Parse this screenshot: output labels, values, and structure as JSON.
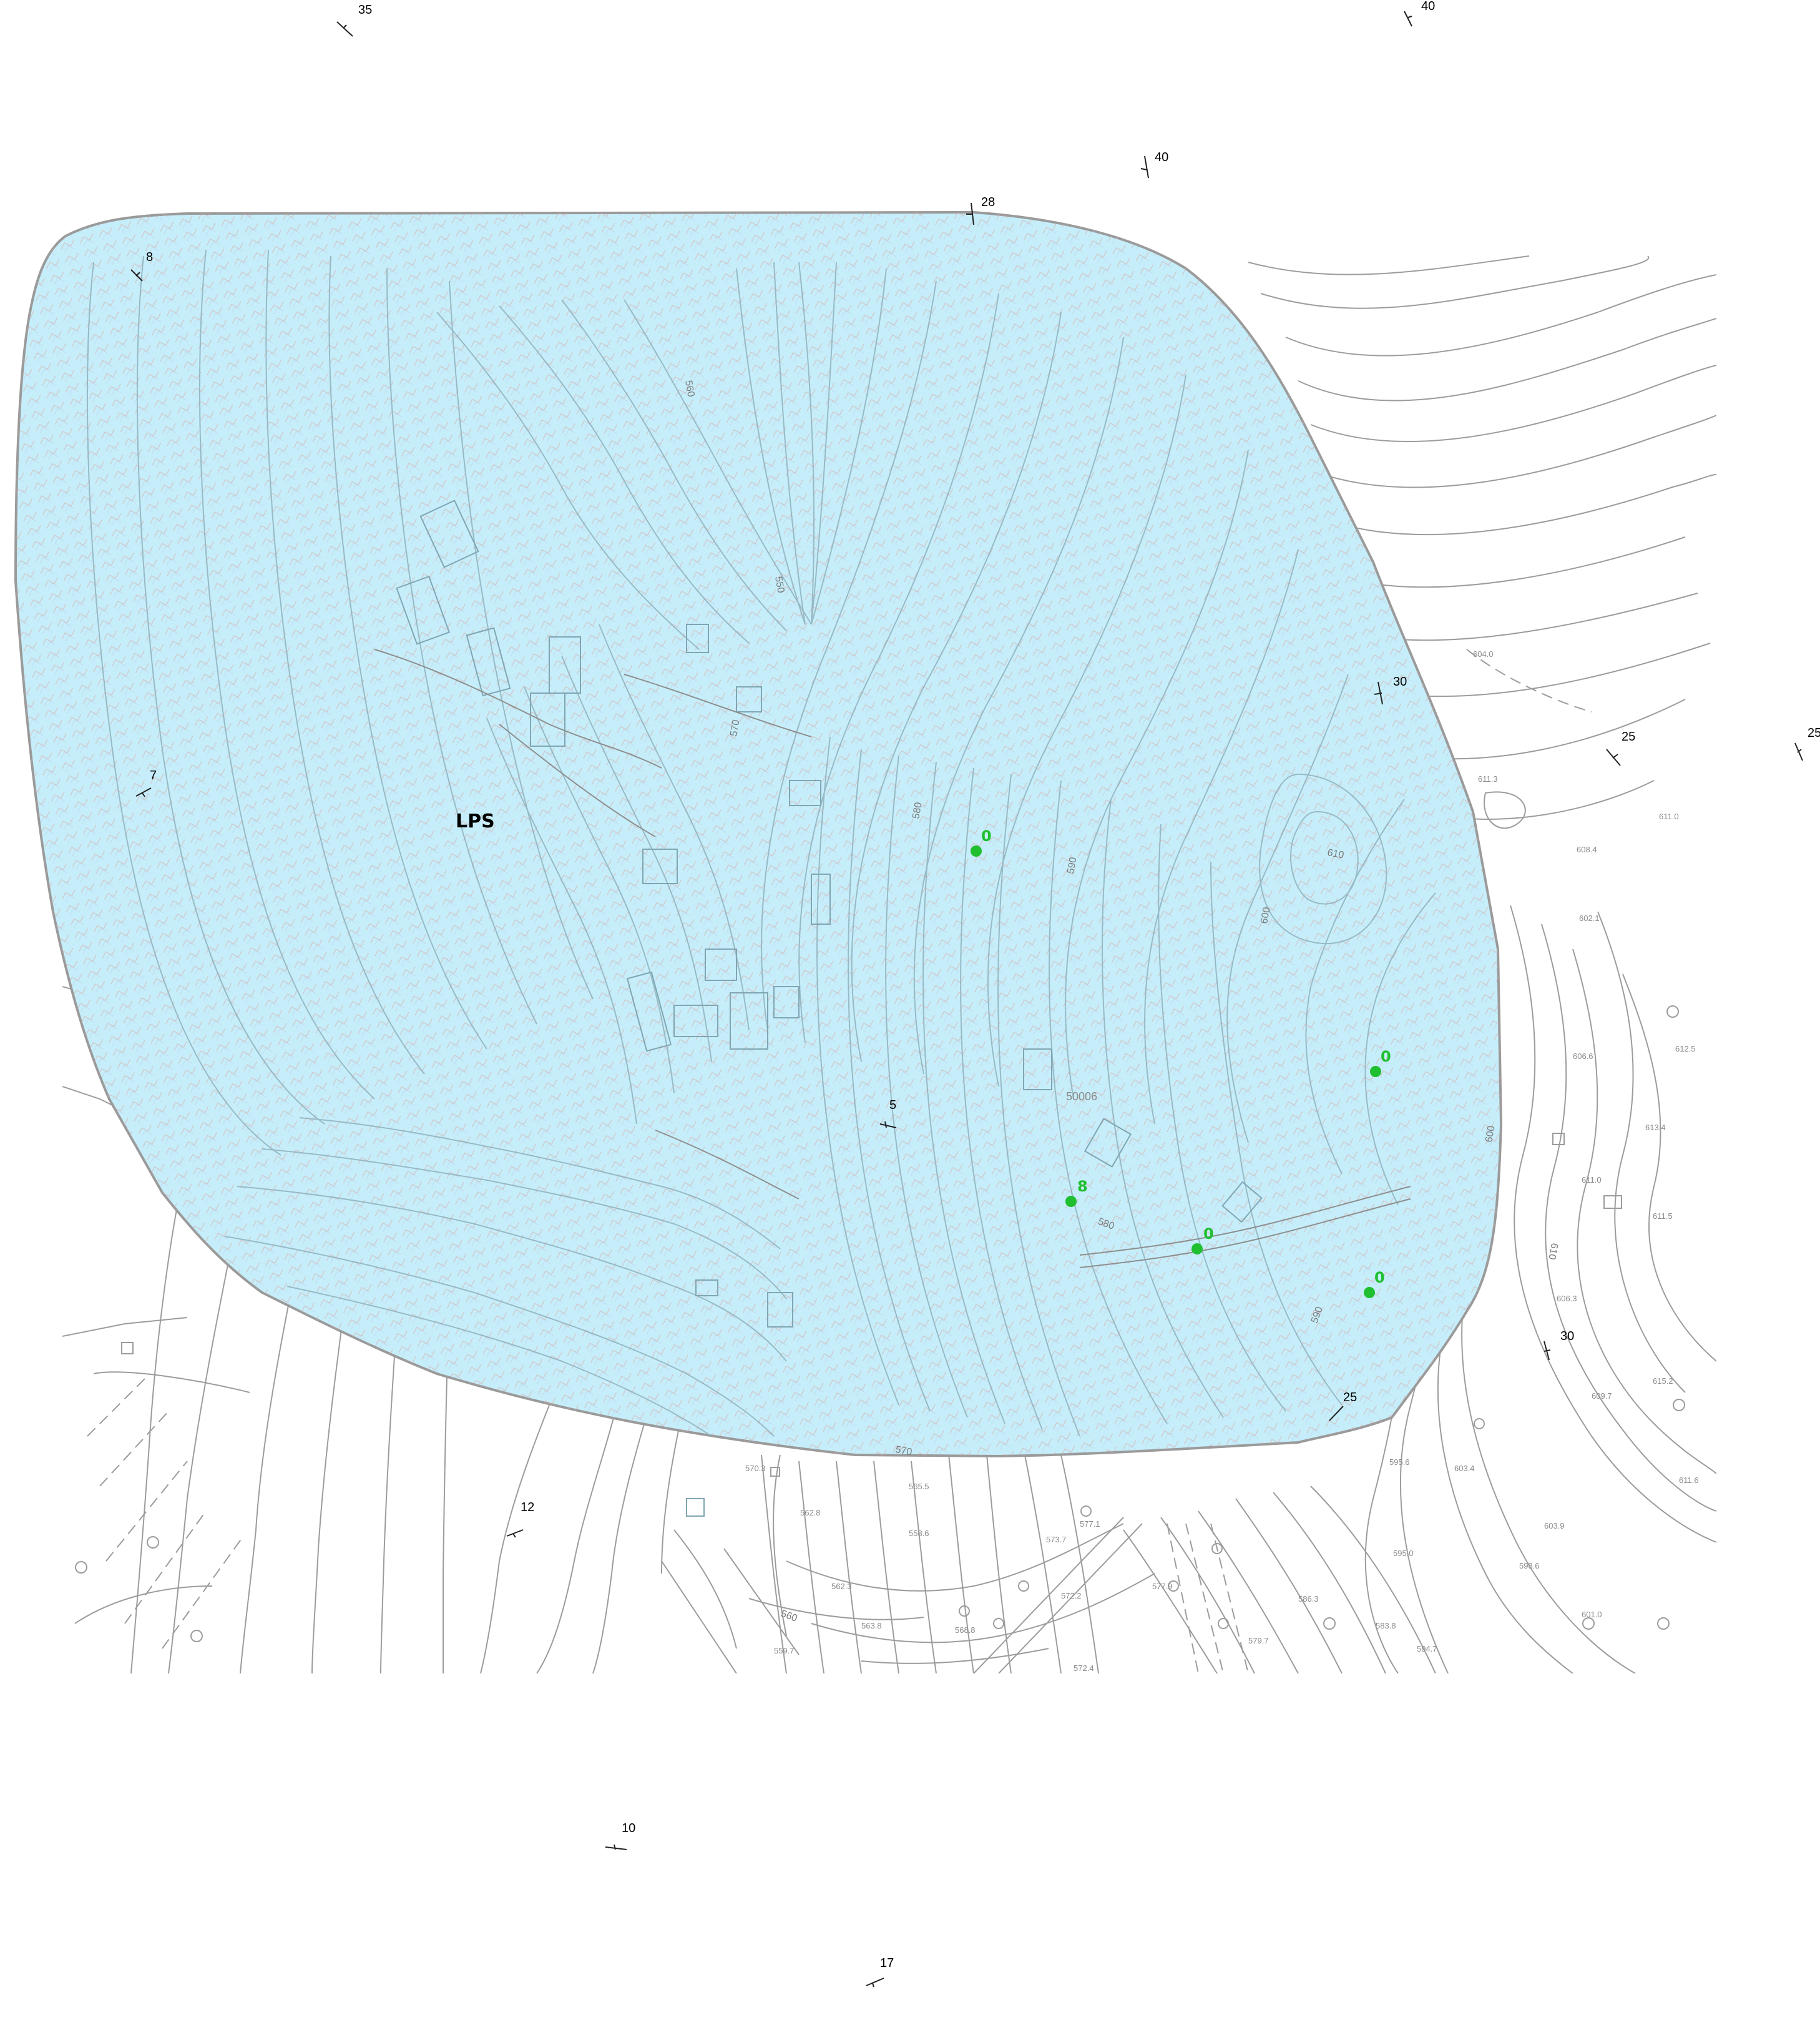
{
  "map": {
    "zone_label": "LPS",
    "zone_fill": "#c6eefa",
    "zone_stroke": "#9a9a9a",
    "point_color": "#1fbf2f",
    "dip_symbols": [
      {
        "id": "dip-35",
        "value": "35"
      },
      {
        "id": "dip-40a",
        "value": "40"
      },
      {
        "id": "dip-40b",
        "value": "40"
      },
      {
        "id": "dip-28",
        "value": "28"
      },
      {
        "id": "dip-8",
        "value": "8"
      },
      {
        "id": "dip-7",
        "value": "7"
      },
      {
        "id": "dip-30a",
        "value": "30"
      },
      {
        "id": "dip-25a",
        "value": "25"
      },
      {
        "id": "dip-25b",
        "value": "25"
      },
      {
        "id": "dip-5",
        "value": "5"
      },
      {
        "id": "dip-30b",
        "value": "30"
      },
      {
        "id": "dip-25c",
        "value": "25"
      },
      {
        "id": "dip-12",
        "value": "12"
      },
      {
        "id": "dip-10",
        "value": "10"
      },
      {
        "id": "dip-17",
        "value": "17"
      }
    ],
    "sample_points": [
      {
        "id": "pt-1",
        "value": "0"
      },
      {
        "id": "pt-2",
        "value": "0"
      },
      {
        "id": "pt-3",
        "value": "8"
      },
      {
        "id": "pt-4",
        "value": "0"
      },
      {
        "id": "pt-5",
        "value": "0"
      }
    ],
    "contour_labels": [
      "570",
      "580",
      "590",
      "600",
      "610",
      "560",
      "550",
      "580",
      "590",
      "600",
      "610",
      "560",
      "570"
    ],
    "spot_heights": [
      "604.0",
      "611.3",
      "611.0",
      "608.4",
      "602.1",
      "606.6",
      "613.4",
      "611.0",
      "611.5",
      "606.3",
      "609.7",
      "615.2",
      "611.6",
      "603.9",
      "601.0",
      "594.7",
      "570.3",
      "565.5",
      "562.8",
      "562.3",
      "559.7",
      "563.8",
      "558.6",
      "572.2",
      "577.1",
      "573.7",
      "568.8",
      "572.4",
      "577.9",
      "579.7",
      "586.3",
      "583.8",
      "595.0",
      "598.6",
      "603.4",
      "595.6",
      "612.5"
    ],
    "building_code": "50006"
  }
}
